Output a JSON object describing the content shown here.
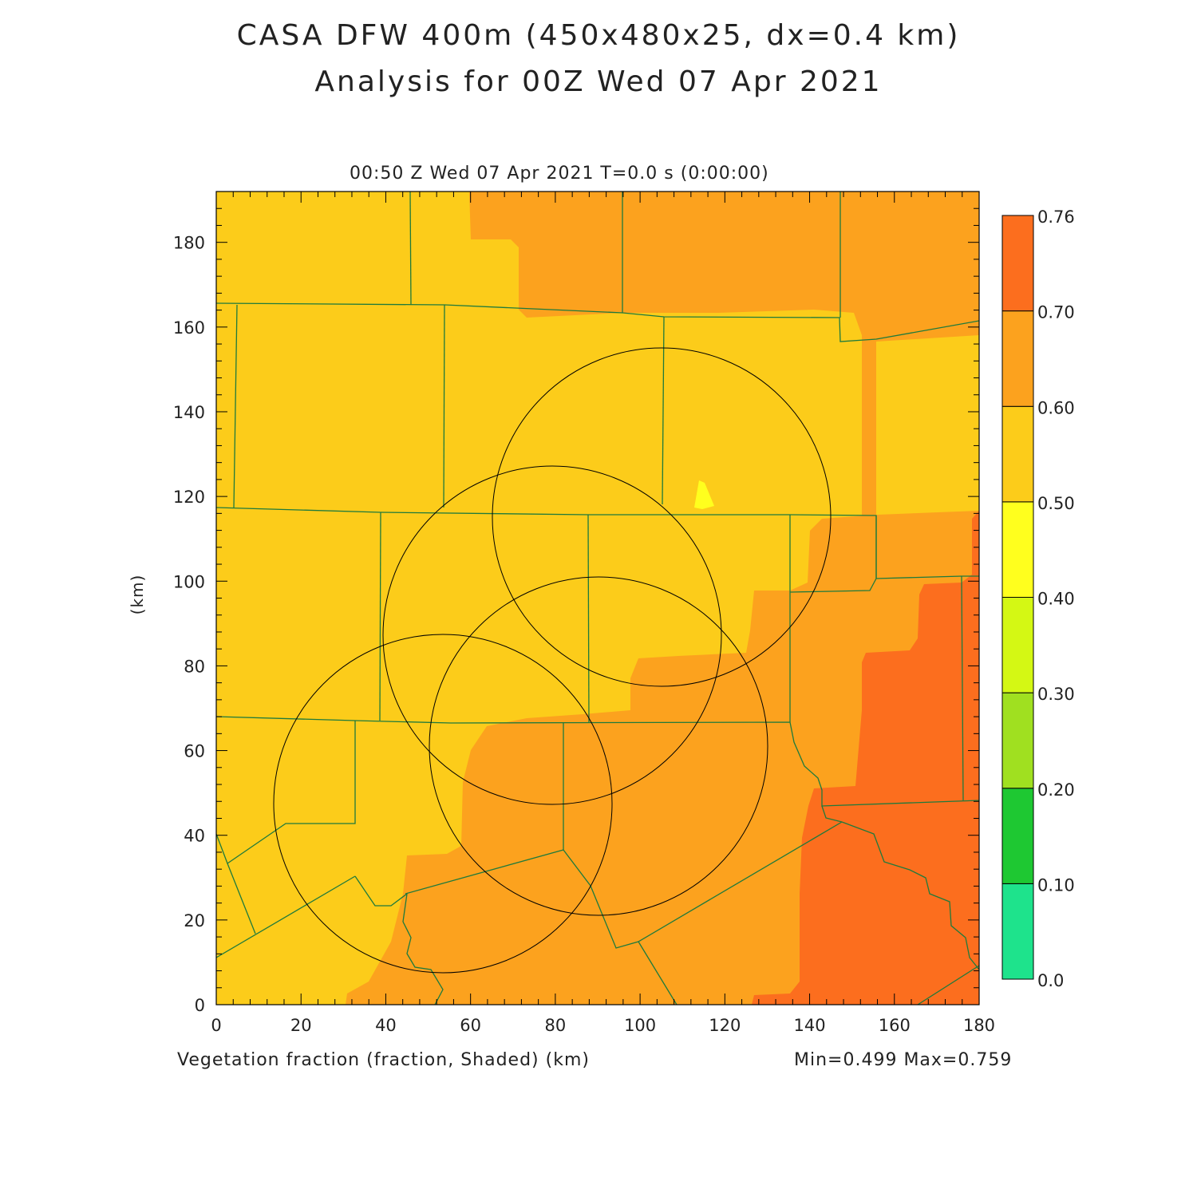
{
  "figure": {
    "title_line1": "CASA DFW 400m (450x480x25, dx=0.4 km)",
    "title_line2": "Analysis for 00Z Wed 07 Apr 2021",
    "subtitle": "00:50 Z Wed 07 Apr 2021   T=0.0 s (0:00:00)",
    "x_label": "Vegetation fraction (fraction, Shaded)  (km)",
    "y_label": "(km)",
    "min_max": "Min=0.499 Max=0.759"
  },
  "colorbar": {
    "labels": [
      "0.0",
      "0.10",
      "0.20",
      "0.30",
      "0.40",
      "0.50",
      "0.60",
      "0.70",
      "0.76"
    ],
    "colors": [
      "#1ee38c",
      "#1ec832",
      "#a0e020",
      "#d4f814",
      "#ffff1e",
      "#fccc1a",
      "#fca21e",
      "#fc6e1e"
    ]
  },
  "chart_data": {
    "type": "heatmap",
    "title": "CASA DFW 400m (450x480x25, dx=0.4 km)",
    "subtitle": "Analysis for 00Z Wed 07 Apr 2021",
    "variable": "Vegetation fraction (fraction, Shaded)",
    "xlabel": "(km)",
    "ylabel": "(km)",
    "xlim": [
      0,
      180
    ],
    "ylim": [
      0,
      192
    ],
    "x_ticks": [
      0,
      20,
      40,
      60,
      80,
      100,
      120,
      140,
      160,
      180
    ],
    "y_ticks": [
      0,
      20,
      40,
      60,
      80,
      100,
      120,
      140,
      160,
      180
    ],
    "contour_levels": [
      0.0,
      0.1,
      0.2,
      0.3,
      0.4,
      0.5,
      0.6,
      0.7,
      0.76
    ],
    "min": 0.499,
    "max": 0.759,
    "radar_rings_km": [
      {
        "cx": 105,
        "cy": 115,
        "r": 40
      },
      {
        "cx": 79,
        "cy": 87,
        "r": 40
      },
      {
        "cx": 90,
        "cy": 61,
        "r": 40
      },
      {
        "cx": 55,
        "cy": 48,
        "r": 40
      }
    ]
  }
}
